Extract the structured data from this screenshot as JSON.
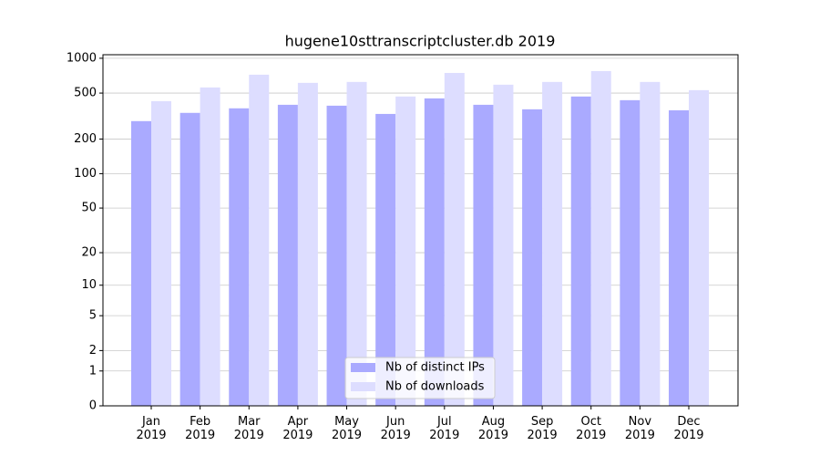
{
  "chart_data": {
    "type": "bar",
    "title": "hugene10sttranscriptcluster.db 2019",
    "categories": [
      "Jan\n2019",
      "Feb\n2019",
      "Mar\n2019",
      "Apr\n2019",
      "May\n2019",
      "Jun\n2019",
      "Jul\n2019",
      "Aug\n2019",
      "Sep\n2019",
      "Oct\n2019",
      "Nov\n2019",
      "Dec\n2019"
    ],
    "series": [
      {
        "name": "Nb of distinct IPs",
        "color": "#aaaaff",
        "values": [
          286,
          337,
          369,
          396,
          389,
          330,
          450,
          396,
          362,
          467,
          434,
          355
        ]
      },
      {
        "name": "Nb of downloads",
        "color": "#ddddff",
        "values": [
          426,
          559,
          721,
          613,
          624,
          467,
          747,
          591,
          624,
          775,
          624,
          530
        ]
      }
    ],
    "yscale": "log1p",
    "ylim": [
      0,
      1073
    ],
    "yticks": [
      0,
      1,
      2,
      5,
      10,
      20,
      50,
      100,
      200,
      500,
      1000
    ],
    "grid": true,
    "legend": "lower center"
  }
}
